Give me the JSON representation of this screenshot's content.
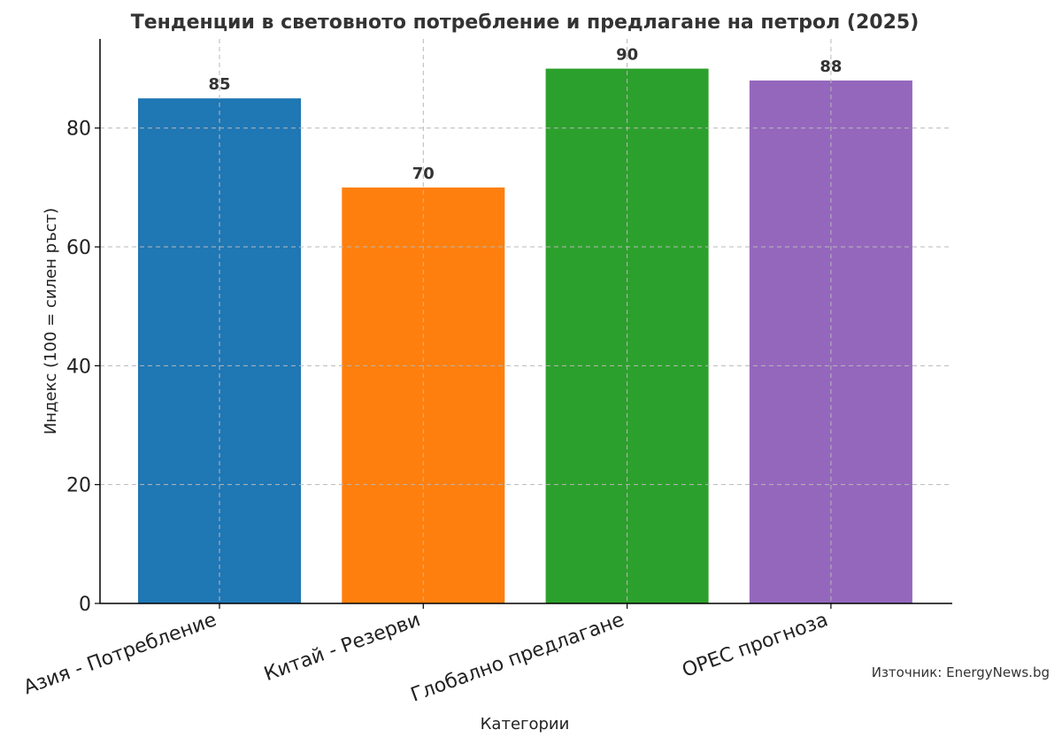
{
  "chart_data": {
    "type": "bar",
    "title": "Тенденции в световното потребление и предлагане на петрол (2025)",
    "xlabel": "Категории",
    "ylabel": "Индекс (100 = силен ръст)",
    "categories": [
      "Азия - Потребление",
      "Китай - Резерви",
      "Глобално предлагане",
      "OPEC прогноза"
    ],
    "values": [
      85,
      70,
      90,
      88
    ],
    "colors": [
      "#1f77b4",
      "#ff7f0e",
      "#2ca02c",
      "#9467bd"
    ],
    "ylim": [
      0,
      95
    ],
    "yticks": [
      0,
      20,
      40,
      60,
      80
    ],
    "grid": true,
    "data_labels": true
  },
  "source_note": "Източник: EnergyNews.bg"
}
